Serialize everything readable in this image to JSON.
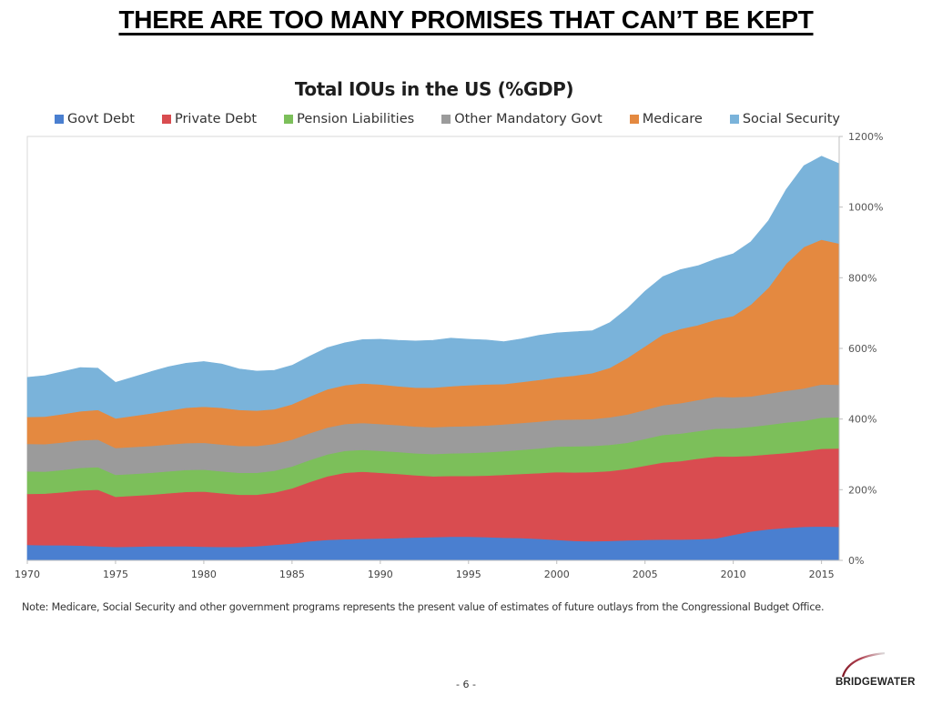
{
  "page": {
    "title": "THERE ARE TOO MANY PROMISES THAT CAN’T BE KEPT",
    "note": "Note: Medicare, Social Security and other government programs represents the present value of estimates of future outlays from the Congressional Budget Office.",
    "page_number": "- 6 -",
    "logo_text": "BRIDGEWATER"
  },
  "chart_data": {
    "type": "area",
    "stacked": true,
    "title": "Total IOUs in the US (%GDP)",
    "xlabel": "",
    "ylabel": "",
    "x": [
      1970,
      1971,
      1972,
      1973,
      1974,
      1975,
      1976,
      1977,
      1978,
      1979,
      1980,
      1981,
      1982,
      1983,
      1984,
      1985,
      1986,
      1987,
      1988,
      1989,
      1990,
      1991,
      1992,
      1993,
      1994,
      1995,
      1996,
      1997,
      1998,
      1999,
      2000,
      2001,
      2002,
      2003,
      2004,
      2005,
      2006,
      2007,
      2008,
      2009,
      2010,
      2011,
      2012,
      2013,
      2014,
      2015,
      2016
    ],
    "xticks": [
      "1970",
      "1975",
      "1980",
      "1985",
      "1990",
      "1995",
      "2000",
      "2005",
      "2010",
      "2015"
    ],
    "xlim": [
      1970,
      2016
    ],
    "ylim": [
      0,
      1200
    ],
    "yticks": [
      "0%",
      "200%",
      "400%",
      "600%",
      "800%",
      "1000%",
      "1200%"
    ],
    "y_axis_position": "right",
    "grid": false,
    "legend_position": "top",
    "series": [
      {
        "name": "Govt Debt",
        "color": "#4a7fd0",
        "values": [
          44,
          43,
          43,
          42,
          40,
          38,
          39,
          40,
          40,
          40,
          39,
          38,
          38,
          40,
          44,
          48,
          54,
          58,
          60,
          61,
          62,
          63,
          65,
          66,
          67,
          67,
          66,
          64,
          63,
          61,
          58,
          55,
          54,
          55,
          57,
          58,
          59,
          59,
          60,
          62,
          72,
          82,
          88,
          92,
          95,
          96,
          95
        ]
      },
      {
        "name": "Private Debt",
        "color": "#d94c50",
        "values": [
          144,
          146,
          150,
          156,
          160,
          142,
          144,
          146,
          150,
          154,
          156,
          152,
          148,
          146,
          148,
          156,
          168,
          180,
          188,
          190,
          186,
          182,
          176,
          172,
          172,
          172,
          174,
          178,
          182,
          186,
          192,
          194,
          196,
          198,
          202,
          210,
          218,
          222,
          228,
          232,
          222,
          214,
          212,
          212,
          214,
          220,
          222
        ]
      },
      {
        "name": "Pension Liabilities",
        "color": "#7cbf5a",
        "values": [
          64,
          62,
          63,
          64,
          64,
          62,
          62,
          62,
          62,
          62,
          62,
          62,
          62,
          62,
          62,
          62,
          62,
          62,
          62,
          62,
          62,
          62,
          62,
          63,
          64,
          65,
          66,
          67,
          68,
          70,
          72,
          74,
          74,
          74,
          74,
          76,
          78,
          78,
          78,
          79,
          80,
          82,
          84,
          86,
          86,
          88,
          88
        ]
      },
      {
        "name": "Other Mandatory Govt",
        "color": "#9b9b9b",
        "values": [
          78,
          78,
          78,
          78,
          78,
          76,
          76,
          76,
          76,
          76,
          76,
          76,
          76,
          76,
          76,
          76,
          76,
          76,
          76,
          76,
          76,
          76,
          76,
          76,
          76,
          76,
          76,
          76,
          76,
          76,
          76,
          76,
          76,
          78,
          80,
          82,
          84,
          86,
          88,
          90,
          88,
          86,
          88,
          90,
          92,
          94,
          92
        ]
      },
      {
        "name": "Medicare",
        "color": "#e48940",
        "values": [
          76,
          78,
          80,
          82,
          84,
          84,
          88,
          92,
          96,
          100,
          102,
          104,
          102,
          100,
          98,
          100,
          104,
          108,
          110,
          112,
          112,
          110,
          110,
          112,
          114,
          116,
          116,
          114,
          116,
          118,
          120,
          124,
          130,
          140,
          160,
          180,
          200,
          210,
          212,
          218,
          230,
          260,
          300,
          360,
          400,
          410,
          400
        ]
      },
      {
        "name": "Social Security",
        "color": "#7ab3da",
        "values": [
          112,
          116,
          120,
          124,
          118,
          102,
          110,
          118,
          124,
          126,
          128,
          124,
          116,
          112,
          110,
          110,
          114,
          118,
          120,
          124,
          128,
          130,
          132,
          134,
          136,
          130,
          126,
          120,
          122,
          126,
          126,
          124,
          120,
          128,
          140,
          156,
          164,
          168,
          168,
          172,
          176,
          178,
          190,
          210,
          230,
          236,
          226
        ]
      }
    ]
  }
}
